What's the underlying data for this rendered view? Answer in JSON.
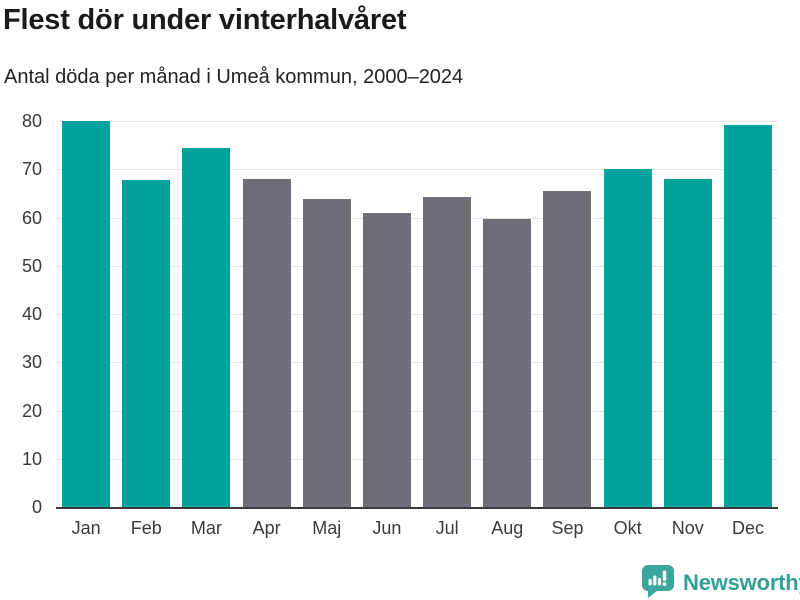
{
  "header": {
    "title": "Flest dör under vinterhalvåret",
    "subtitle": "Antal döda per månad i Umeå kommun, 2000–2024"
  },
  "chart_data": {
    "type": "bar",
    "title": "Flest dör under vinterhalvåret",
    "subtitle": "Antal döda per månad i Umeå kommun, 2000–2024",
    "categories": [
      "Jan",
      "Feb",
      "Mar",
      "Apr",
      "Maj",
      "Jun",
      "Jul",
      "Aug",
      "Sep",
      "Okt",
      "Nov",
      "Dec"
    ],
    "values": [
      80.2,
      67.9,
      74.6,
      68.2,
      64.1,
      61.1,
      64.5,
      59.9,
      65.8,
      70.3,
      68.1,
      79.3
    ],
    "highlighted": [
      true,
      true,
      true,
      false,
      false,
      false,
      false,
      false,
      false,
      true,
      true,
      true
    ],
    "xlabel": "",
    "ylabel": "",
    "yticks": [
      0,
      10,
      20,
      30,
      40,
      50,
      60,
      70,
      80
    ],
    "ylim": [
      0,
      84
    ],
    "grid": "horizontal",
    "legend_position": "none",
    "colors": {
      "highlight_teal": "#00a39b",
      "base_gray": "#6e6e76",
      "gridline": "#e4e4e4",
      "axis_line": "#3b3b3b",
      "text": "#3a3a3a"
    }
  },
  "footer": {
    "brand_name": "Newsworthy",
    "brand_color": "#2f9f98",
    "logo_icon": "speech-bubble-bar-chart-exclamation"
  }
}
